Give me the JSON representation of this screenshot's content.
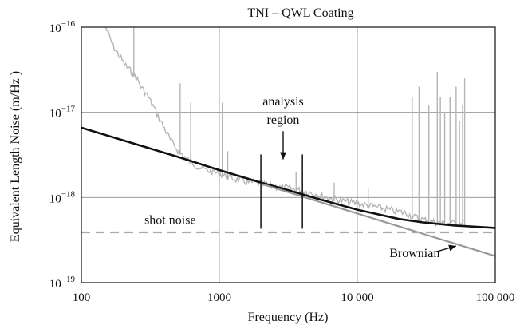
{
  "chart_data": {
    "type": "line",
    "title": "TNI – QWL Coating",
    "xlabel": "Frequency (Hz)",
    "ylabel_prefix": "Equivalent Length Noise (m/",
    "ylabel_radicand": "Hz",
    "ylabel_suffix": " )",
    "x_scale": "log",
    "y_scale": "log",
    "xlim": [
      100,
      100000
    ],
    "ylim": [
      1e-19,
      1e-16
    ],
    "grid": true,
    "x_ticks": [
      {
        "value": 100,
        "label": "100"
      },
      {
        "value": 1000,
        "label": "1000"
      },
      {
        "value": 10000,
        "label": "10 000"
      },
      {
        "value": 100000,
        "label": "100 000"
      }
    ],
    "y_ticks": [
      {
        "value": 1e-19,
        "base": "10",
        "exp": "−19"
      },
      {
        "value": 1e-18,
        "base": "10",
        "exp": "−18"
      },
      {
        "value": 1e-17,
        "base": "10",
        "exp": "−17"
      },
      {
        "value": 1e-16,
        "base": "10",
        "exp": "−16"
      }
    ],
    "series": [
      {
        "style": "measured",
        "color": "#b5b5b5",
        "x": [
          150,
          170,
          190,
          210,
          230,
          250,
          270,
          300,
          330,
          360,
          400,
          450,
          500,
          560,
          630,
          700,
          800,
          900,
          1000,
          1100,
          1200,
          1400,
          1600,
          1800,
          2000,
          2200,
          2500,
          2800,
          3000,
          3500,
          4000,
          5000,
          6000,
          7000,
          8000,
          10000,
          12000,
          15000,
          18000,
          20000,
          23000,
          25000,
          30000,
          35000,
          40000,
          50000,
          60000
        ],
        "y": [
          1e-16,
          6e-17,
          4.5e-17,
          3.5e-17,
          3e-17,
          2.6e-17,
          2e-17,
          1.6e-17,
          1.2e-17,
          9e-18,
          6.5e-18,
          4.5e-18,
          3.6e-18,
          3e-18,
          2.6e-18,
          2.3e-18,
          2.1e-18,
          2e-18,
          1.9e-18,
          1.8e-18,
          1.7e-18,
          1.6e-18,
          1.5e-18,
          1.5e-18,
          1.45e-18,
          1.4e-18,
          1.35e-18,
          1.3e-18,
          1.3e-18,
          1.25e-18,
          1.2e-18,
          1.1e-18,
          1e-18,
          9.5e-19,
          9e-19,
          8.5e-19,
          8e-19,
          7.5e-19,
          7e-19,
          6.8e-19,
          6.5e-19,
          6e-19,
          5.5e-19,
          5.2e-19,
          5e-19,
          5e-19,
          5e-19
        ],
        "spikes": [
          {
            "x": 240,
            "y": 1e-16
          },
          {
            "x": 520,
            "y": 2.2e-17
          },
          {
            "x": 620,
            "y": 1.3e-17
          },
          {
            "x": 1050,
            "y": 1.3e-17
          },
          {
            "x": 1150,
            "y": 3.5e-18
          },
          {
            "x": 3600,
            "y": 2e-18
          },
          {
            "x": 6800,
            "y": 1.5e-18
          },
          {
            "x": 12000,
            "y": 1.3e-18
          },
          {
            "x": 25000,
            "y": 1.5e-17
          },
          {
            "x": 28000,
            "y": 2e-17
          },
          {
            "x": 33000,
            "y": 1.2e-17
          },
          {
            "x": 38000,
            "y": 3e-17
          },
          {
            "x": 40000,
            "y": 1.5e-17
          },
          {
            "x": 43000,
            "y": 1e-17
          },
          {
            "x": 47000,
            "y": 1.5e-17
          },
          {
            "x": 52000,
            "y": 2e-17
          },
          {
            "x": 55000,
            "y": 8e-18
          },
          {
            "x": 58000,
            "y": 1.2e-17
          },
          {
            "x": 60000,
            "y": 2.5e-17
          }
        ]
      },
      {
        "style": "total-model",
        "color": "#111111",
        "x": [
          100,
          200,
          500,
          1000,
          2000,
          3000,
          5000,
          10000,
          20000,
          30000,
          50000,
          100000
        ],
        "y": [
          6.6e-18,
          4.7e-18,
          3e-18,
          2.1e-18,
          1.5e-18,
          1.25e-18,
          9.8e-19,
          7.2e-19,
          5.6e-19,
          5.1e-19,
          4.7e-19,
          4.4e-19
        ]
      },
      {
        "name": "Brownian",
        "style": "brownian",
        "color": "#999999",
        "x": [
          2000,
          100000
        ],
        "y": [
          1.45e-18,
          2.05e-19
        ]
      },
      {
        "name": "shot noise",
        "style": "shot-noise",
        "color": "#aaaaaa",
        "x": [
          100,
          100000
        ],
        "y": [
          3.9e-19,
          3.9e-19
        ]
      }
    ],
    "analysis_region": {
      "x_lo": 2000,
      "x_hi": 4000,
      "y_lo": 4.3e-19,
      "y_hi": 3.2e-18,
      "arrow_x": 2900,
      "arrow_y_from": 6e-18,
      "arrow_y_to": 2.8e-18
    },
    "annotations": {
      "analysis": "analysis",
      "region": "region",
      "shot_noise": "shot noise",
      "brownian": "Brownian"
    },
    "annotation_positions": {
      "analysis": {
        "x": 2900,
        "y": 1.2e-17
      },
      "region": {
        "x": 2900,
        "y": 7.3e-18
      },
      "shot_noise": {
        "x": 440,
        "y": 4.9e-19
      },
      "brownian": {
        "x": 26000,
        "y": 2e-19
      },
      "brownian_arrow_from": {
        "x": 37000,
        "y": 2.3e-19
      },
      "brownian_arrow_to": {
        "x": 52000,
        "y": 2.7e-19
      }
    }
  }
}
